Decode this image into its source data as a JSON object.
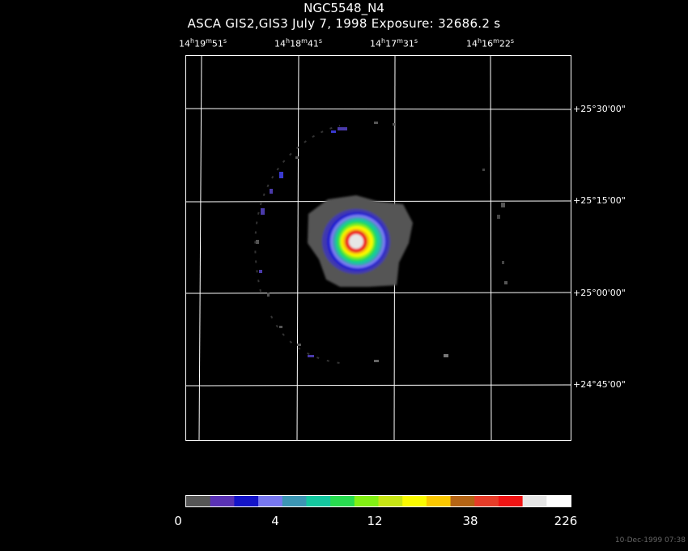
{
  "header": {
    "object_name": "NGC5548_N4",
    "subtitle": "ASCA GIS2,GIS3 July 7, 1998 Exposure: 32686.2 s"
  },
  "ra_labels": [
    {
      "h": "14",
      "m": "19",
      "s": "51"
    },
    {
      "h": "14",
      "m": "18",
      "s": "41"
    },
    {
      "h": "14",
      "m": "17",
      "s": "31"
    },
    {
      "h": "14",
      "m": "16",
      "s": "22"
    }
  ],
  "dec_labels": [
    "+25°30'00\"",
    "+25°15'00\"",
    "+25°00'00\"",
    "+24°45'00\""
  ],
  "colorbar": {
    "colors": [
      "#555555",
      "#5a32b4",
      "#1414c8",
      "#7878f0",
      "#3c96b4",
      "#14c8a0",
      "#28dc50",
      "#82f014",
      "#c8e614",
      "#fafa00",
      "#fac800",
      "#b46414",
      "#e63c28",
      "#f01414",
      "#e6e6e6",
      "#ffffff"
    ],
    "labels": [
      "0",
      "4",
      "12",
      "38",
      "226"
    ]
  },
  "timestamp": "10-Dec-1999 07:38"
}
